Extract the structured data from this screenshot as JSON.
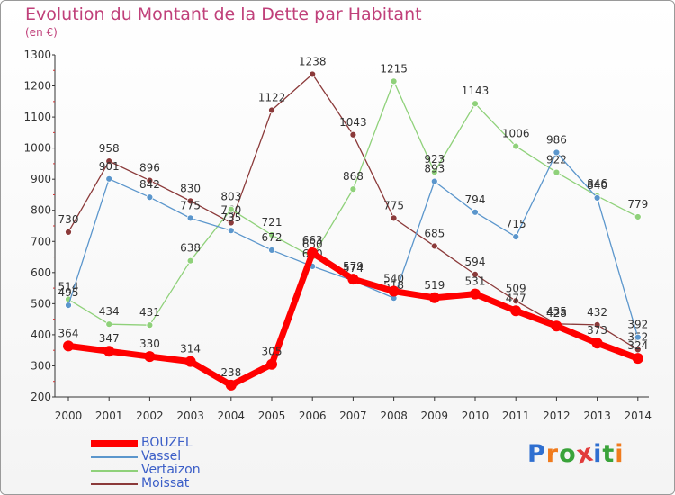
{
  "header": {
    "title": "Evolution du Montant de la Dette par Habitant",
    "subtitle": "(en €)"
  },
  "logo": {
    "text": "Proxiti",
    "letter_colors": [
      "#2f6fd0",
      "#f07b1d",
      "#3aa33a",
      "#e23b3b",
      "#2f6fd0",
      "#3aa33a",
      "#f07b1d"
    ]
  },
  "chart_data": {
    "type": "line",
    "title": "Evolution du Montant de la Dette par Habitant",
    "subtitle": "(en €)",
    "xlabel": "",
    "ylabel": "",
    "x": [
      "2000",
      "2001",
      "2002",
      "2003",
      "2004",
      "2005",
      "2006",
      "2007",
      "2008",
      "2009",
      "2010",
      "2011",
      "2012",
      "2013",
      "2014"
    ],
    "ylim": [
      200,
      1300
    ],
    "yticks": [
      200,
      300,
      400,
      500,
      600,
      700,
      800,
      900,
      1000,
      1100,
      1200,
      1300
    ],
    "grid": false,
    "legend_position": "bottom-left",
    "series": [
      {
        "name": "Moissat",
        "color": "#8b3a3a",
        "values": [
          730,
          958,
          896,
          830,
          760,
          1122,
          1238,
          1043,
          775,
          685,
          594,
          509,
          435,
          432,
          352
        ],
        "labels": [
          "730",
          "958",
          "896",
          "830",
          "760",
          "1122",
          "1238",
          "1043",
          "775",
          "685",
          "594",
          "509",
          "435",
          "432",
          "352"
        ]
      },
      {
        "name": "Vertaizon",
        "color": "#8fd17a",
        "values": [
          514,
          434,
          431,
          638,
          803,
          721,
          650,
          868,
          1215,
          923,
          1143,
          1006,
          922,
          846,
          779
        ],
        "labels": [
          "514",
          "434",
          "431",
          "638",
          "803",
          "721",
          "650",
          "868",
          "1215",
          "923",
          "1143",
          "1006",
          "922",
          "846",
          "779"
        ]
      },
      {
        "name": "Vassel",
        "color": "#5b96cc",
        "values": [
          495,
          901,
          842,
          775,
          735,
          672,
          620,
          574,
          518,
          893,
          794,
          715,
          986,
          840,
          392
        ],
        "labels": [
          "495",
          "901",
          "842",
          "775",
          "735",
          "672",
          "620",
          "574",
          "518",
          "893",
          "794",
          "715",
          "986",
          "840",
          "392"
        ]
      },
      {
        "name": "BOUZEL",
        "color": "#ff0000",
        "values": [
          364,
          347,
          330,
          314,
          238,
          305,
          663,
          579,
          540,
          519,
          531,
          477,
          428,
          373,
          324
        ],
        "labels": [
          "364",
          "347",
          "330",
          "314",
          "238",
          "305",
          "663",
          "579",
          "540",
          "519",
          "531",
          "477",
          "428",
          "373",
          "324"
        ]
      }
    ],
    "legend": [
      "BOUZEL",
      "Vassel",
      "Vertaizon",
      "Moissat"
    ]
  }
}
